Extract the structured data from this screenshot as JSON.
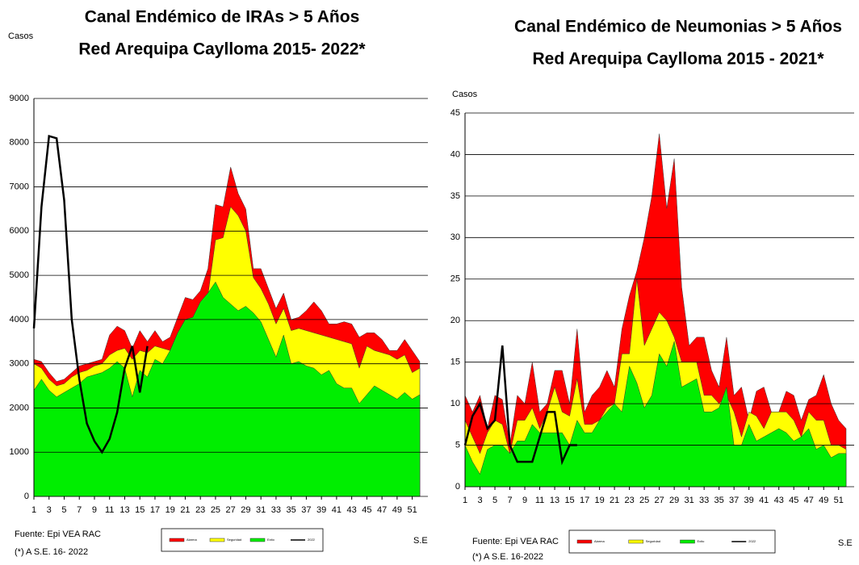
{
  "chart_data": [
    {
      "type": "area",
      "title": "Canal Endémico de IRAs > 5 Años",
      "subtitle": "Red Arequipa Caylloma 2015- 2022*",
      "y_label": "Casos",
      "x_label": "S.E",
      "source": "Fuente: Epi VEA RAC",
      "note": "(*) A S.E. 16- 2022",
      "x": [
        1,
        2,
        3,
        4,
        5,
        6,
        7,
        8,
        9,
        10,
        11,
        12,
        13,
        14,
        15,
        16,
        17,
        18,
        19,
        20,
        21,
        22,
        23,
        24,
        25,
        26,
        27,
        28,
        29,
        30,
        31,
        32,
        33,
        34,
        35,
        36,
        37,
        38,
        39,
        40,
        41,
        42,
        43,
        44,
        45,
        46,
        47,
        48,
        49,
        50,
        51,
        52
      ],
      "xlim": [
        1,
        52
      ],
      "xticks": [
        1,
        3,
        5,
        7,
        9,
        11,
        13,
        15,
        17,
        19,
        21,
        23,
        25,
        27,
        29,
        31,
        33,
        35,
        37,
        39,
        41,
        43,
        45,
        47,
        49,
        51
      ],
      "ylim": [
        0,
        9000
      ],
      "yticks": [
        0,
        1000,
        2000,
        3000,
        4000,
        5000,
        6000,
        7000,
        8000,
        9000
      ],
      "grid": true,
      "series": [
        {
          "name": "Alarma",
          "color": "#ff0000",
          "values": [
            3100,
            3050,
            2800,
            2600,
            2650,
            2800,
            2950,
            3000,
            3050,
            3100,
            3650,
            3850,
            3750,
            3350,
            3750,
            3500,
            3750,
            3500,
            3600,
            4050,
            4500,
            4450,
            4650,
            5150,
            6600,
            6550,
            7450,
            6850,
            6500,
            5150,
            5150,
            4700,
            4250,
            4600,
            4000,
            4050,
            4200,
            4400,
            4200,
            3900,
            3900,
            3950,
            3900,
            3600,
            3700,
            3700,
            3550,
            3300,
            3300,
            3550,
            3300,
            3050
          ]
        },
        {
          "name": "Seguridad",
          "color": "#ffff00",
          "values": [
            3000,
            2900,
            2650,
            2500,
            2550,
            2700,
            2800,
            2850,
            2950,
            3000,
            3200,
            3300,
            3350,
            3100,
            3300,
            3250,
            3400,
            3350,
            3300,
            3700,
            4000,
            4050,
            4350,
            4550,
            5800,
            5850,
            6550,
            6350,
            6000,
            4950,
            4700,
            4350,
            3900,
            4250,
            3750,
            3800,
            3750,
            3700,
            3650,
            3600,
            3550,
            3500,
            3450,
            2900,
            3400,
            3300,
            3250,
            3200,
            3100,
            3200,
            2800,
            2900
          ]
        },
        {
          "name": "Exito",
          "color": "#00ee00",
          "values": [
            2400,
            2650,
            2400,
            2250,
            2350,
            2450,
            2550,
            2700,
            2750,
            2800,
            2900,
            3050,
            2900,
            2250,
            2850,
            2700,
            3100,
            3000,
            3300,
            3700,
            4000,
            4050,
            4400,
            4600,
            4850,
            4500,
            4350,
            4200,
            4300,
            4150,
            3950,
            3550,
            3150,
            3650,
            3000,
            3050,
            2950,
            2900,
            2750,
            2850,
            2550,
            2450,
            2450,
            2100,
            2300,
            2500,
            2400,
            2300,
            2200,
            2350,
            2200,
            2300
          ]
        },
        {
          "name": "2022",
          "type": "line",
          "color": "#000000",
          "values": [
            3800,
            6550,
            8150,
            8100,
            6700,
            4000,
            2650,
            1650,
            1250,
            1000,
            1300,
            1900,
            2900,
            3400,
            2350,
            3400,
            null,
            null,
            null,
            null,
            null,
            null,
            null,
            null,
            null,
            null,
            null,
            null,
            null,
            null,
            null,
            null,
            null,
            null,
            null,
            null,
            null,
            null,
            null,
            null,
            null,
            null,
            null,
            null,
            null,
            null,
            null,
            null,
            null,
            null,
            null,
            null
          ]
        }
      ]
    },
    {
      "type": "area",
      "title": "Canal Endémico de Neumonias > 5 Años",
      "subtitle": "Red Arequipa Caylloma 2015 - 2021*",
      "y_label": "Casos",
      "x_label": "S.E",
      "source": "Fuente: Epi VEA RAC",
      "note": "(*) A S.E. 16-2022",
      "x": [
        1,
        2,
        3,
        4,
        5,
        6,
        7,
        8,
        9,
        10,
        11,
        12,
        13,
        14,
        15,
        16,
        17,
        18,
        19,
        20,
        21,
        22,
        23,
        24,
        25,
        26,
        27,
        28,
        29,
        30,
        31,
        32,
        33,
        34,
        35,
        36,
        37,
        38,
        39,
        40,
        41,
        42,
        43,
        44,
        45,
        46,
        47,
        48,
        49,
        50,
        51,
        52
      ],
      "xlim": [
        1,
        52
      ],
      "xticks": [
        1,
        3,
        5,
        7,
        9,
        11,
        13,
        15,
        17,
        19,
        21,
        23,
        25,
        27,
        29,
        31,
        33,
        35,
        37,
        39,
        41,
        43,
        45,
        47,
        49,
        51
      ],
      "ylim": [
        0,
        45
      ],
      "yticks": [
        0,
        5,
        10,
        15,
        20,
        25,
        30,
        35,
        40,
        45
      ],
      "grid": true,
      "series": [
        {
          "name": "Alarma",
          "color": "#ff0000",
          "values": [
            11,
            9,
            11,
            7,
            11,
            10.5,
            5,
            11,
            10,
            15,
            9,
            10,
            14,
            14,
            10,
            19,
            9,
            11,
            12,
            14,
            12,
            19,
            23,
            26,
            30,
            35,
            42.5,
            33.5,
            39.5,
            24,
            17,
            18,
            18,
            14,
            12,
            18,
            11,
            12,
            8,
            11.5,
            12,
            9,
            9,
            11.5,
            11,
            8,
            10.5,
            11,
            13.5,
            10,
            8,
            7
          ]
        },
        {
          "name": "Seguridad",
          "color": "#ffff00",
          "values": [
            8,
            6,
            4,
            6.5,
            8,
            7.5,
            4,
            8,
            8,
            9.5,
            7,
            9,
            12,
            9,
            8.5,
            13,
            7.5,
            7.5,
            8,
            9.5,
            10,
            16,
            16,
            25,
            17,
            19,
            21,
            20,
            18,
            15,
            15,
            15,
            11,
            11,
            10,
            11,
            9,
            6,
            9,
            8.5,
            7,
            9,
            9,
            9,
            8,
            6,
            9,
            8,
            8,
            5,
            5,
            4.5
          ]
        },
        {
          "name": "Exito",
          "color": "#00ee00",
          "values": [
            5,
            3,
            1.5,
            4.5,
            5,
            5,
            4,
            5.5,
            5.5,
            7.5,
            6.5,
            6.5,
            6.5,
            6.5,
            5,
            8,
            6.5,
            6.5,
            8,
            9,
            10,
            9,
            14.5,
            12.5,
            9.5,
            11,
            16,
            14.5,
            17.5,
            12,
            12.5,
            13,
            9,
            9,
            9.5,
            12,
            5,
            5,
            7.5,
            5.5,
            6,
            6.5,
            7,
            6.5,
            5.5,
            6,
            7,
            4.5,
            5,
            3.5,
            4,
            4
          ]
        },
        {
          "name": "2022",
          "type": "line",
          "color": "#000000",
          "values": [
            5,
            8.5,
            10,
            7,
            8,
            17,
            5,
            3,
            3,
            3,
            6,
            9,
            9,
            3,
            5,
            5,
            null,
            null,
            null,
            null,
            null,
            null,
            null,
            null,
            null,
            null,
            null,
            null,
            null,
            null,
            null,
            null,
            null,
            null,
            null,
            null,
            null,
            null,
            null,
            null,
            null,
            null,
            null,
            null,
            null,
            null,
            null,
            null,
            null,
            null,
            null,
            null
          ]
        }
      ]
    }
  ]
}
